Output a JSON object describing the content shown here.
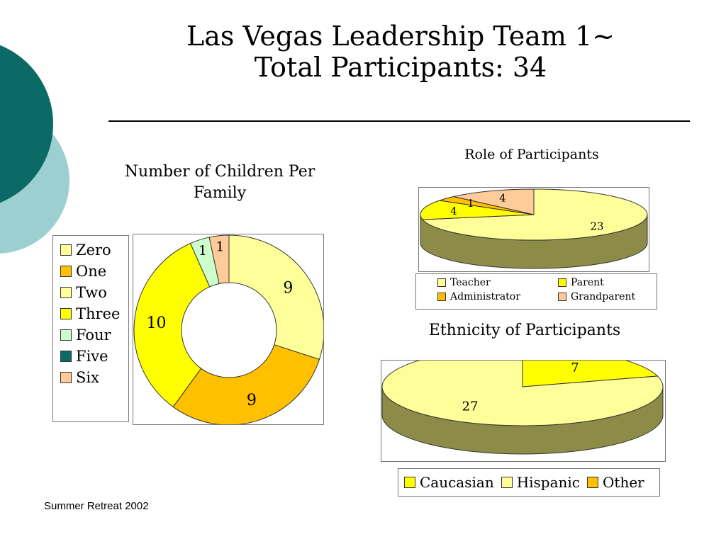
{
  "slide": {
    "title_line1": "Las Vegas Leadership Team 1~",
    "title_line2": "Total Participants: 34",
    "footer": "Summer Retreat 2002"
  },
  "colors": {
    "teal_dark": "#0b6a66",
    "teal_light": "#9ccfd0",
    "yellow": "#ffff00",
    "pale_yellow": "#ffff99",
    "gold": "#ffc000",
    "light_green": "#ccffcc",
    "peach": "#ffcc99",
    "olive_side": "#8c8c48"
  },
  "chart_data": [
    {
      "id": "children",
      "type": "pie",
      "variant": "donut",
      "title_line1": "Number of Children Per",
      "title_line2": "Family",
      "legend_position": "left",
      "slices": [
        {
          "label": "Zero",
          "value": 9,
          "color": "#ffff99",
          "value_label": "9"
        },
        {
          "label": "One",
          "value": 9,
          "color": "#ffc000",
          "value_label": "9"
        },
        {
          "label": "Two",
          "value": 0,
          "color": "#ffff99",
          "value_label": ""
        },
        {
          "label": "Three",
          "value": 10,
          "color": "#ffff00",
          "value_label": "10"
        },
        {
          "label": "Four",
          "value": 1,
          "color": "#ccffcc",
          "value_label": "1"
        },
        {
          "label": "Five",
          "value": 0,
          "color": "#0b6a66",
          "value_label": ""
        },
        {
          "label": "Six",
          "value": 1,
          "color": "#ffcc99",
          "value_label": "1"
        }
      ]
    },
    {
      "id": "role",
      "type": "pie",
      "variant": "3d",
      "title": "Role of Participants",
      "legend_position": "bottom",
      "slices": [
        {
          "label": "Teacher",
          "value": 23,
          "color": "#ffff99",
          "value_label": "23"
        },
        {
          "label": "Parent",
          "value": 4,
          "color": "#ffff00",
          "value_label": "4"
        },
        {
          "label": "Administrator",
          "value": 1,
          "color": "#ffc000",
          "value_label": "1"
        },
        {
          "label": "Grandparent",
          "value": 4,
          "color": "#ffcc99",
          "value_label": "4"
        }
      ]
    },
    {
      "id": "ethnicity",
      "type": "pie",
      "variant": "3d",
      "title": "Ethnicity of Participants",
      "legend_position": "bottom",
      "slices": [
        {
          "label": "Caucasian",
          "value": 7,
          "color": "#ffff00",
          "value_label": "7"
        },
        {
          "label": "Hispanic",
          "value": 27,
          "color": "#ffff99",
          "value_label": "27"
        },
        {
          "label": "Other",
          "value": 0,
          "color": "#ffc000",
          "value_label": ""
        }
      ]
    }
  ]
}
